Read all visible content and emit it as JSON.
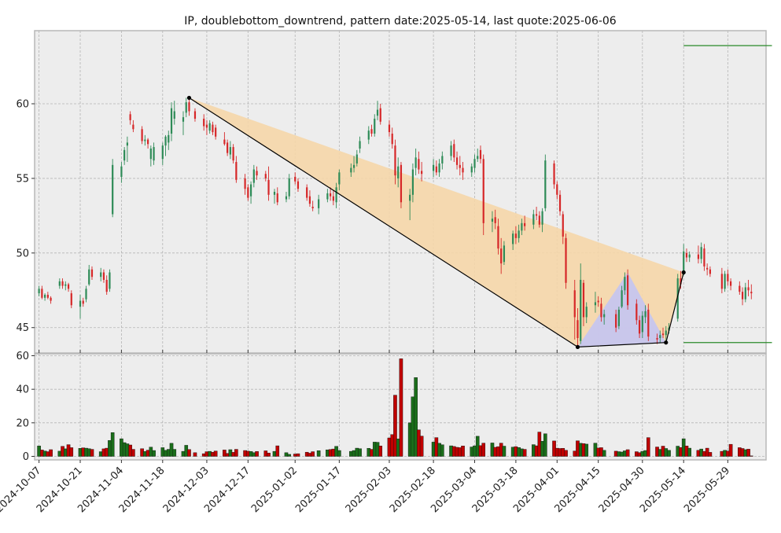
{
  "chart_data": {
    "type": "candlestick",
    "title": "IP, doublebottom_downtrend, pattern date:2025-05-14, last quote:2025-06-06",
    "price_axis": {
      "ylim": [
        43.3,
        64.9
      ],
      "ticks": [
        45,
        50,
        55,
        60
      ]
    },
    "volume_axis": {
      "ylim": [
        0,
        60
      ],
      "ticks": [
        0,
        20,
        40,
        60
      ]
    },
    "x_range_days": [
      -1.5,
      247
    ],
    "x_ticks": [
      "2024-10-07",
      "2024-10-21",
      "2024-11-04",
      "2024-11-18",
      "2024-12-03",
      "2024-12-17",
      "2025-01-02",
      "2025-01-17",
      "2025-02-03",
      "2025-02-18",
      "2025-03-04",
      "2025-03-18",
      "2025-04-01",
      "2025-04-15",
      "2025-04-30",
      "2025-05-14",
      "2025-05-29"
    ],
    "grid": true,
    "colors": {
      "up": "#2e8b57",
      "down": "#d62728",
      "up_vol": "#1a6e1a",
      "down_vol": "#c00000",
      "wedge": "#f5d6a8",
      "triangle": "#c4c4f2",
      "target": "#2a8a2a"
    },
    "pattern_points": [
      {
        "date": "2024-11-27",
        "price": 60.4
      },
      {
        "date": "2025-04-08",
        "price": 43.7
      },
      {
        "date": "2025-05-08",
        "price": 44.0
      },
      {
        "date": "2025-05-14",
        "price": 48.7
      }
    ],
    "wedge_upper_end": {
      "date": "2025-05-14",
      "price": 48.7
    },
    "triangle_peak": {
      "date": "2025-04-25",
      "price": 48.7
    },
    "targets": [
      {
        "price": 63.9
      },
      {
        "price": 44.0
      }
    ],
    "target_range": [
      "2025-05-14",
      "2025-06-13"
    ],
    "candles": [
      [
        "2024-10-07",
        47.3,
        47.8,
        47.1,
        47.6,
        6.2
      ],
      [
        "2024-10-08",
        47.6,
        47.8,
        46.9,
        47.0,
        3.8
      ],
      [
        "2024-10-09",
        47.0,
        47.3,
        46.8,
        47.2,
        3.2
      ],
      [
        "2024-10-10",
        47.2,
        47.4,
        46.9,
        47.0,
        2.8
      ],
      [
        "2024-10-11",
        47.0,
        47.1,
        46.6,
        46.8,
        4.0
      ],
      [
        "2024-10-14",
        47.8,
        48.3,
        47.6,
        48.1,
        3.1
      ],
      [
        "2024-10-15",
        48.1,
        48.3,
        47.6,
        47.8,
        6.0
      ],
      [
        "2024-10-16",
        47.8,
        48.1,
        47.5,
        47.9,
        4.5
      ],
      [
        "2024-10-17",
        47.9,
        48.0,
        47.4,
        47.6,
        7.0
      ],
      [
        "2024-10-18",
        47.3,
        47.5,
        46.3,
        46.5,
        5.2
      ],
      [
        "2024-10-21",
        46.4,
        47.2,
        45.6,
        46.8,
        4.8
      ],
      [
        "2024-10-22",
        46.8,
        47.0,
        46.4,
        46.6,
        5.1
      ],
      [
        "2024-10-23",
        46.9,
        47.8,
        46.7,
        47.6,
        4.9
      ],
      [
        "2024-10-24",
        47.9,
        49.2,
        47.8,
        48.9,
        4.6
      ],
      [
        "2024-10-25",
        48.9,
        49.1,
        48.2,
        48.4,
        4.2
      ],
      [
        "2024-10-28",
        48.4,
        49.0,
        48.1,
        48.7,
        2.8
      ],
      [
        "2024-10-29",
        48.7,
        48.9,
        48.0,
        48.2,
        4.5
      ],
      [
        "2024-10-30",
        48.2,
        48.5,
        47.2,
        47.4,
        4.9
      ],
      [
        "2024-10-31",
        47.6,
        48.9,
        47.4,
        48.7,
        9.5
      ],
      [
        "2024-11-01",
        52.6,
        56.3,
        52.4,
        55.9,
        14.2
      ],
      [
        "2024-11-04",
        55.1,
        56.1,
        54.7,
        55.8,
        10.5
      ],
      [
        "2024-11-05",
        56.2,
        57.1,
        55.9,
        56.9,
        8.2
      ],
      [
        "2024-11-06",
        57.2,
        57.8,
        56.1,
        57.4,
        7.5
      ],
      [
        "2024-11-07",
        59.3,
        59.5,
        58.6,
        58.9,
        6.8
      ],
      [
        "2024-11-08",
        58.6,
        58.9,
        58.1,
        58.3,
        4.2
      ],
      [
        "2024-11-11",
        58.3,
        58.5,
        57.3,
        57.5,
        4.6
      ],
      [
        "2024-11-12",
        57.5,
        57.9,
        57.2,
        57.6,
        2.9
      ],
      [
        "2024-11-13",
        57.6,
        57.7,
        57.0,
        57.3,
        3.7
      ],
      [
        "2024-11-14",
        56.3,
        57.2,
        55.8,
        57.0,
        5.5
      ],
      [
        "2024-11-15",
        56.2,
        57.4,
        55.9,
        57.1,
        3.5
      ],
      [
        "2024-11-18",
        56.3,
        57.4,
        55.9,
        57.2,
        5.2
      ],
      [
        "2024-11-19",
        57.2,
        57.9,
        56.5,
        57.8,
        3.6
      ],
      [
        "2024-11-20",
        57.4,
        58.2,
        56.9,
        57.9,
        4.2
      ],
      [
        "2024-11-21",
        58.0,
        60.1,
        57.5,
        59.7,
        7.8
      ],
      [
        "2024-11-22",
        59.0,
        60.2,
        58.6,
        59.5,
        4.2
      ],
      [
        "2024-11-25",
        58.8,
        59.5,
        57.9,
        59.1,
        3.0
      ],
      [
        "2024-11-26",
        59.4,
        60.4,
        59.1,
        60.1,
        6.6
      ],
      [
        "2024-11-27",
        60.1,
        60.3,
        59.2,
        59.5,
        4.1
      ],
      [
        "2024-11-29",
        59.5,
        59.7,
        58.8,
        59.0,
        2.2
      ],
      [
        "2024-12-02",
        59.0,
        59.3,
        58.2,
        58.5,
        1.6
      ],
      [
        "2024-12-03",
        58.6,
        58.9,
        57.9,
        58.4,
        2.8
      ],
      [
        "2024-12-04",
        58.2,
        58.9,
        58.0,
        58.7,
        3.0
      ],
      [
        "2024-12-05",
        58.6,
        58.8,
        57.9,
        58.1,
        2.5
      ],
      [
        "2024-12-06",
        58.4,
        58.6,
        57.6,
        57.8,
        3.2
      ],
      [
        "2024-12-09",
        57.6,
        58.1,
        57.2,
        57.3,
        3.8
      ],
      [
        "2024-12-10",
        57.4,
        57.6,
        56.5,
        56.7,
        1.8
      ],
      [
        "2024-12-11",
        56.6,
        57.5,
        56.3,
        57.1,
        4.0
      ],
      [
        "2024-12-12",
        57.1,
        57.3,
        56.0,
        56.2,
        2.4
      ],
      [
        "2024-12-13",
        56.1,
        56.5,
        54.7,
        54.9,
        4.2
      ],
      [
        "2024-12-16",
        55.0,
        55.3,
        53.9,
        54.3,
        3.5
      ],
      [
        "2024-12-17",
        54.4,
        54.6,
        53.5,
        53.7,
        3.1
      ],
      [
        "2024-12-18",
        53.8,
        54.8,
        53.3,
        54.6,
        2.9
      ],
      [
        "2024-12-19",
        54.7,
        55.9,
        54.4,
        55.6,
        2.2
      ],
      [
        "2024-12-20",
        55.5,
        55.8,
        54.9,
        55.2,
        2.9
      ],
      [
        "2024-12-23",
        55.3,
        55.5,
        54.8,
        55.0,
        3.3
      ],
      [
        "2024-12-24",
        54.9,
        55.8,
        53.5,
        53.9,
        2.0
      ],
      [
        "2024-12-26",
        53.9,
        54.3,
        53.3,
        54.1,
        3.0
      ],
      [
        "2024-12-27",
        54.0,
        54.4,
        53.2,
        53.4,
        6.3
      ],
      [
        "2024-12-30",
        53.6,
        54.1,
        53.4,
        53.8,
        2.2
      ],
      [
        "2024-12-31",
        53.8,
        55.3,
        53.6,
        55.0,
        1.2
      ],
      [
        "2025-01-02",
        55.1,
        55.4,
        54.6,
        54.8,
        1.4
      ],
      [
        "2025-01-03",
        54.8,
        55.0,
        54.1,
        54.3,
        1.6
      ],
      [
        "2025-01-06",
        54.4,
        54.6,
        53.5,
        53.7,
        2.5
      ],
      [
        "2025-01-07",
        53.8,
        54.2,
        53.1,
        53.3,
        1.9
      ],
      [
        "2025-01-08",
        53.1,
        53.5,
        52.8,
        53.0,
        2.8
      ],
      [
        "2025-01-10",
        53.0,
        53.9,
        52.6,
        53.6,
        3.4
      ],
      [
        "2025-01-13",
        53.6,
        54.3,
        53.4,
        54.0,
        3.9
      ],
      [
        "2025-01-14",
        54.0,
        54.4,
        53.5,
        53.8,
        4.1
      ],
      [
        "2025-01-15",
        53.8,
        54.2,
        53.2,
        53.5,
        4.4
      ],
      [
        "2025-01-16",
        53.4,
        54.7,
        53.0,
        54.4,
        6.0
      ],
      [
        "2025-01-17",
        54.6,
        55.6,
        54.2,
        55.4,
        3.5
      ],
      [
        "2025-01-21",
        55.4,
        56.0,
        55.1,
        55.7,
        3.0
      ],
      [
        "2025-01-22",
        55.7,
        56.5,
        55.4,
        55.9,
        3.5
      ],
      [
        "2025-01-23",
        56.0,
        56.9,
        55.8,
        56.6,
        4.9
      ],
      [
        "2025-01-24",
        57.0,
        57.8,
        56.7,
        57.5,
        4.6
      ],
      [
        "2025-01-27",
        57.6,
        58.5,
        57.3,
        58.2,
        4.8
      ],
      [
        "2025-01-28",
        58.3,
        58.6,
        57.8,
        58.0,
        4.2
      ],
      [
        "2025-01-29",
        58.0,
        59.3,
        57.8,
        59.0,
        8.5
      ],
      [
        "2025-01-30",
        59.2,
        60.2,
        58.9,
        59.6,
        8.4
      ],
      [
        "2025-01-31",
        59.7,
        60.0,
        58.6,
        58.8,
        6.2
      ],
      [
        "2025-02-03",
        58.6,
        58.9,
        57.8,
        58.1,
        11.0
      ],
      [
        "2025-02-04",
        58.0,
        58.4,
        57.0,
        57.3,
        13.0
      ],
      [
        "2025-02-05",
        57.2,
        57.6,
        54.6,
        55.2,
        36.5
      ],
      [
        "2025-02-06",
        55.0,
        56.4,
        54.4,
        55.8,
        10.4
      ],
      [
        "2025-02-07",
        55.9,
        56.1,
        53.0,
        53.4,
        58.2
      ],
      [
        "2025-02-10",
        53.5,
        54.3,
        52.2,
        53.9,
        20.0
      ],
      [
        "2025-02-11",
        53.9,
        56.0,
        53.4,
        55.6,
        35.5
      ],
      [
        "2025-02-12",
        55.7,
        57.0,
        55.2,
        56.4,
        47.0
      ],
      [
        "2025-02-13",
        56.3,
        56.8,
        55.3,
        55.6,
        15.8
      ],
      [
        "2025-02-14",
        55.5,
        56.1,
        54.8,
        55.3,
        12.1
      ],
      [
        "2025-02-18",
        55.5,
        56.3,
        55.1,
        55.9,
        8.5
      ],
      [
        "2025-02-19",
        55.8,
        56.2,
        55.2,
        55.4,
        11.2
      ],
      [
        "2025-02-20",
        55.4,
        56.3,
        55.1,
        56.0,
        7.8
      ],
      [
        "2025-02-21",
        56.0,
        56.8,
        55.6,
        56.5,
        6.9
      ],
      [
        "2025-02-24",
        56.5,
        57.5,
        56.2,
        57.2,
        6.3
      ],
      [
        "2025-02-25",
        57.3,
        57.6,
        56.1,
        56.4,
        5.9
      ],
      [
        "2025-02-26",
        56.4,
        56.8,
        55.6,
        55.9,
        5.4
      ],
      [
        "2025-02-27",
        55.9,
        56.5,
        55.2,
        55.7,
        5.2
      ],
      [
        "2025-02-28",
        55.7,
        56.1,
        54.9,
        55.4,
        6.2
      ],
      [
        "2025-03-03",
        55.4,
        56.0,
        55.1,
        55.8,
        5.6
      ],
      [
        "2025-03-04",
        55.7,
        56.6,
        55.4,
        56.3,
        6.3
      ],
      [
        "2025-03-05",
        56.3,
        57.0,
        56.1,
        56.5,
        12.0
      ],
      [
        "2025-03-06",
        56.9,
        57.2,
        56.0,
        56.3,
        6.4
      ],
      [
        "2025-03-07",
        56.3,
        56.6,
        51.2,
        52.0,
        7.9
      ],
      [
        "2025-03-10",
        52.1,
        52.8,
        51.4,
        52.3,
        8.0
      ],
      [
        "2025-03-11",
        52.4,
        52.9,
        51.6,
        52.0,
        5.4
      ],
      [
        "2025-03-12",
        51.8,
        52.3,
        49.9,
        50.3,
        5.8
      ],
      [
        "2025-03-13",
        50.3,
        51.0,
        48.6,
        49.3,
        7.9
      ],
      [
        "2025-03-14",
        49.4,
        50.8,
        49.2,
        50.5,
        6.1
      ],
      [
        "2025-03-17",
        50.6,
        51.5,
        50.2,
        51.3,
        5.5
      ],
      [
        "2025-03-18",
        51.3,
        51.8,
        50.6,
        51.0,
        5.8
      ],
      [
        "2025-03-19",
        51.0,
        51.9,
        50.7,
        51.5,
        5.3
      ],
      [
        "2025-03-20",
        51.5,
        52.3,
        51.2,
        52.0,
        4.5
      ],
      [
        "2025-03-21",
        52.0,
        52.5,
        51.5,
        51.8,
        4.2
      ],
      [
        "2025-03-24",
        51.9,
        52.9,
        51.6,
        52.6,
        7.0
      ],
      [
        "2025-03-25",
        52.6,
        53.1,
        52.2,
        52.5,
        6.3
      ],
      [
        "2025-03-26",
        52.5,
        52.8,
        51.7,
        51.9,
        14.5
      ],
      [
        "2025-03-27",
        51.9,
        53.0,
        51.4,
        52.8,
        9.0
      ],
      [
        "2025-03-28",
        53.0,
        56.6,
        52.8,
        56.2,
        13.5
      ],
      [
        "2025-03-31",
        56.0,
        56.2,
        54.3,
        54.6,
        9.2
      ],
      [
        "2025-04-01",
        54.6,
        54.8,
        53.6,
        53.9,
        4.9
      ],
      [
        "2025-04-02",
        53.9,
        54.2,
        52.5,
        52.8,
        4.7
      ],
      [
        "2025-04-03",
        52.6,
        52.8,
        50.6,
        51.1,
        4.8
      ],
      [
        "2025-04-04",
        51.0,
        51.3,
        47.6,
        48.0,
        3.6
      ],
      [
        "2025-04-07",
        47.5,
        48.2,
        44.2,
        45.7,
        3.2
      ],
      [
        "2025-04-08",
        45.5,
        46.3,
        43.7,
        44.3,
        9.3
      ],
      [
        "2025-04-09",
        44.1,
        49.3,
        43.9,
        48.2,
        7.8
      ],
      [
        "2025-04-10",
        48.0,
        48.2,
        45.1,
        45.7,
        7.6
      ],
      [
        "2025-04-11",
        45.7,
        46.7,
        45.3,
        46.4,
        7.3
      ],
      [
        "2025-04-14",
        46.5,
        47.4,
        46.0,
        46.7,
        7.9
      ],
      [
        "2025-04-15",
        46.8,
        47.1,
        46.4,
        46.7,
        5.0
      ],
      [
        "2025-04-16",
        46.6,
        47.0,
        45.4,
        45.7,
        5.2
      ],
      [
        "2025-04-17",
        45.7,
        46.2,
        45.2,
        45.9,
        3.6
      ],
      [
        "2025-04-21",
        45.9,
        46.2,
        44.7,
        45.0,
        3.1
      ],
      [
        "2025-04-22",
        45.1,
        46.4,
        44.9,
        46.2,
        2.8
      ],
      [
        "2025-04-23",
        46.4,
        47.8,
        46.3,
        47.5,
        2.6
      ],
      [
        "2025-04-24",
        47.5,
        48.7,
        47.2,
        48.4,
        3.3
      ],
      [
        "2025-04-25",
        48.5,
        48.9,
        46.2,
        46.5,
        4.0
      ],
      [
        "2025-04-28",
        46.6,
        46.9,
        45.2,
        45.5,
        2.8
      ],
      [
        "2025-04-29",
        45.5,
        45.8,
        44.3,
        44.6,
        2.2
      ],
      [
        "2025-04-30",
        44.7,
        46.1,
        44.3,
        45.8,
        3.0
      ],
      [
        "2025-05-01",
        45.7,
        46.5,
        45.3,
        46.1,
        3.5
      ],
      [
        "2025-05-02",
        46.2,
        46.6,
        44.1,
        44.4,
        11.2
      ],
      [
        "2025-05-05",
        44.3,
        44.6,
        43.9,
        44.2,
        5.6
      ],
      [
        "2025-05-06",
        44.3,
        44.8,
        44.0,
        44.5,
        4.2
      ],
      [
        "2025-05-07",
        44.6,
        45.0,
        44.3,
        44.5,
        6.1
      ],
      [
        "2025-05-08",
        44.5,
        45.1,
        44.0,
        44.8,
        4.7
      ],
      [
        "2025-05-09",
        44.8,
        45.3,
        44.6,
        45.0,
        3.6
      ],
      [
        "2025-05-12",
        45.6,
        48.6,
        45.4,
        48.3,
        6.1
      ],
      [
        "2025-05-13",
        48.3,
        48.8,
        47.6,
        47.9,
        5.3
      ],
      [
        "2025-05-14",
        48.7,
        50.6,
        48.5,
        50.1,
        10.5
      ],
      [
        "2025-05-15",
        50.0,
        50.3,
        49.4,
        49.7,
        6.2
      ],
      [
        "2025-05-16",
        49.7,
        50.1,
        49.4,
        49.9,
        4.9
      ],
      [
        "2025-05-19",
        49.9,
        50.5,
        49.3,
        49.6,
        3.6
      ],
      [
        "2025-05-20",
        49.6,
        50.7,
        49.3,
        50.4,
        4.4
      ],
      [
        "2025-05-21",
        50.3,
        50.6,
        48.8,
        49.1,
        3.0
      ],
      [
        "2025-05-22",
        49.0,
        49.3,
        48.5,
        48.9,
        4.9
      ],
      [
        "2025-05-23",
        48.9,
        49.1,
        48.4,
        48.6,
        2.4
      ],
      [
        "2025-05-27",
        48.6,
        49.0,
        47.3,
        47.6,
        3.0
      ],
      [
        "2025-05-28",
        47.6,
        48.8,
        47.4,
        48.6,
        3.6
      ],
      [
        "2025-05-29",
        48.6,
        48.9,
        47.8,
        48.1,
        3.2
      ],
      [
        "2025-05-30",
        48.1,
        48.3,
        47.5,
        47.8,
        7.2
      ],
      [
        "2025-06-02",
        47.8,
        48.1,
        47.2,
        47.4,
        5.2
      ],
      [
        "2025-06-03",
        47.4,
        47.7,
        46.5,
        46.9,
        4.7
      ],
      [
        "2025-06-04",
        46.9,
        48.0,
        46.7,
        47.7,
        4.0
      ],
      [
        "2025-06-05",
        47.7,
        48.2,
        47.1,
        47.5,
        4.3
      ],
      [
        "2025-06-06",
        47.4,
        47.9,
        46.9,
        47.3,
        0.3
      ]
    ]
  }
}
